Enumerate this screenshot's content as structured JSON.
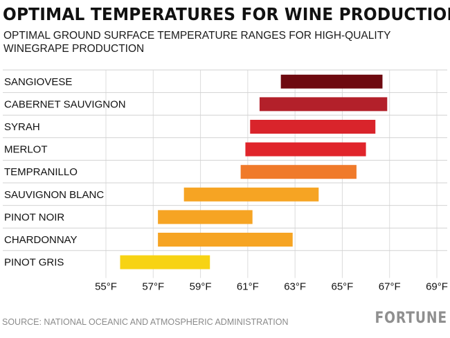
{
  "header": {
    "title": "OPTIMAL TEMPERATURES FOR WINE PRODUCTION",
    "subtitle": "OPTIMAL GROUND SURFACE TEMPERATURE RANGES FOR HIGH-QUALITY WINEGRAPE PRODUCTION"
  },
  "footer": {
    "source": "SOURCE: NATIONAL OCEANIC AND ATMOSPHERIC ADMINISTRATION",
    "brand": "FORTUNE"
  },
  "chart_data": {
    "type": "bar",
    "orientation": "horizontal-range",
    "title": "OPTIMAL TEMPERATURES FOR WINE PRODUCTION",
    "subtitle": "OPTIMAL GROUND SURFACE TEMPERATURE RANGES FOR HIGH-QUALITY WINEGRAPE PRODUCTION",
    "xlabel": "",
    "ylabel": "",
    "xlim": [
      55,
      69
    ],
    "x_ticks": [
      55,
      57,
      59,
      61,
      63,
      65,
      67,
      69
    ],
    "x_tick_labels": [
      "55°F",
      "57°F",
      "59°F",
      "61°F",
      "63°F",
      "65°F",
      "67°F",
      "69°F"
    ],
    "grid": true,
    "categories": [
      "SANGIOVESE",
      "CABERNET SAUVIGNON",
      "SYRAH",
      "MERLOT",
      "TEMPRANILLO",
      "SAUVIGNON BLANC",
      "PINOT NOIR",
      "CHARDONNAY",
      "PINOT GRIS"
    ],
    "ranges": [
      {
        "category": "SANGIOVESE",
        "low": 62.4,
        "high": 66.7,
        "color": "#6e0a10"
      },
      {
        "category": "CABERNET SAUVIGNON",
        "low": 61.5,
        "high": 66.9,
        "color": "#b3202a"
      },
      {
        "category": "SYRAH",
        "low": 61.1,
        "high": 66.4,
        "color": "#d9242b"
      },
      {
        "category": "MERLOT",
        "low": 60.9,
        "high": 66.0,
        "color": "#e0252b"
      },
      {
        "category": "TEMPRANILLO",
        "low": 60.7,
        "high": 65.6,
        "color": "#f07a2a"
      },
      {
        "category": "SAUVIGNON BLANC",
        "low": 58.3,
        "high": 64.0,
        "color": "#f6a423"
      },
      {
        "category": "PINOT NOIR",
        "low": 57.2,
        "high": 61.2,
        "color": "#f6a423"
      },
      {
        "category": "CHARDONNAY",
        "low": 57.2,
        "high": 62.9,
        "color": "#f6a423"
      },
      {
        "category": "PINOT GRIS",
        "low": 55.6,
        "high": 59.4,
        "color": "#f7d314"
      }
    ]
  }
}
